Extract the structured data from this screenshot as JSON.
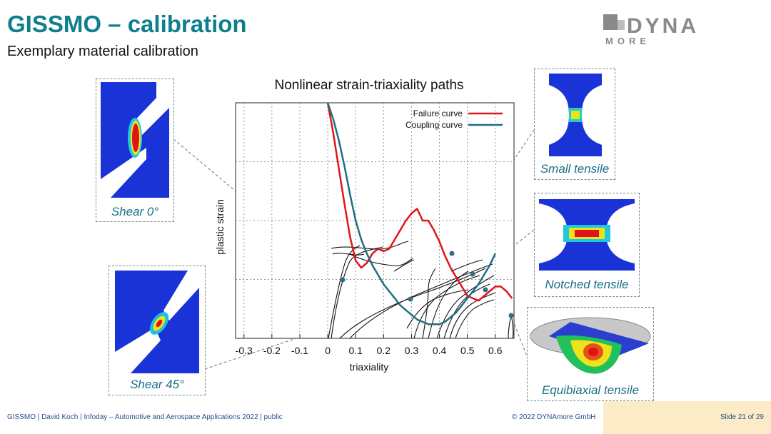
{
  "slide": {
    "title": "GISSMO – calibration",
    "subtitle": "Exemplary material calibration",
    "logo_text_top": "DYNA",
    "logo_text_bottom": "MORE"
  },
  "panels": {
    "shear0": "Shear 0°",
    "shear45": "Shear 45°",
    "small_tensile": "Small tensile",
    "notched_tensile": "Notched tensile",
    "equibiaxial": "Equibiaxial tensile"
  },
  "footer": {
    "left": "GISSMO | David Koch | Infoday – Automotive and Aerospace Applications 2022 | public",
    "copyright": "© 2022 DYNAmore GmbH",
    "slide_number": "Slide 21 of 29"
  },
  "colors": {
    "title": "#0f7f8e",
    "failure_curve": "#e0141b",
    "coupling_curve": "#1f6e86",
    "caption": "#1a6f8a",
    "footer_bg": "#fbecc7"
  },
  "chart_data": {
    "type": "line",
    "title": "Nonlinear strain-triaxiality paths",
    "xlabel": "triaxiality",
    "ylabel": "plastic strain",
    "xlim": [
      -0.33,
      0.667
    ],
    "ylim": [
      0,
      1
    ],
    "x_ticks": [
      -0.3,
      -0.2,
      -0.1,
      0,
      0.1,
      0.2,
      0.3,
      0.4,
      0.5,
      0.6
    ],
    "x_tick_labels": [
      "-0.3",
      "-0.2",
      "-0.1",
      "0",
      "0.1",
      "0.2",
      "0.3",
      "0.4",
      "0.5",
      "0.6"
    ],
    "grid": true,
    "legend": "top-right",
    "series": [
      {
        "name": "Failure curve",
        "color": "#e0141b",
        "x": [
          0.0,
          0.02,
          0.04,
          0.06,
          0.08,
          0.1,
          0.12,
          0.14,
          0.16,
          0.18,
          0.2,
          0.22,
          0.24,
          0.26,
          0.28,
          0.3,
          0.32,
          0.34,
          0.36,
          0.38,
          0.4,
          0.42,
          0.44,
          0.46,
          0.48,
          0.5,
          0.52,
          0.54,
          0.56,
          0.58,
          0.6,
          0.62,
          0.64,
          0.66
        ],
        "y": [
          1.0,
          0.87,
          0.72,
          0.57,
          0.43,
          0.33,
          0.3,
          0.32,
          0.36,
          0.38,
          0.37,
          0.38,
          0.42,
          0.46,
          0.5,
          0.53,
          0.55,
          0.5,
          0.5,
          0.46,
          0.41,
          0.35,
          0.3,
          0.26,
          0.22,
          0.18,
          0.17,
          0.16,
          0.18,
          0.2,
          0.22,
          0.22,
          0.2,
          0.17
        ]
      },
      {
        "name": "Coupling curve",
        "color": "#1f6e86",
        "x": [
          0.0,
          0.02,
          0.04,
          0.06,
          0.08,
          0.1,
          0.12,
          0.14,
          0.16,
          0.18,
          0.2,
          0.22,
          0.24,
          0.26,
          0.28,
          0.3,
          0.32,
          0.34,
          0.36,
          0.38,
          0.4,
          0.42,
          0.44,
          0.46,
          0.48,
          0.5,
          0.52,
          0.54,
          0.56,
          0.58,
          0.6
        ],
        "y": [
          1.0,
          0.93,
          0.84,
          0.73,
          0.61,
          0.5,
          0.42,
          0.36,
          0.31,
          0.27,
          0.23,
          0.2,
          0.17,
          0.14,
          0.12,
          0.1,
          0.08,
          0.07,
          0.06,
          0.06,
          0.06,
          0.07,
          0.09,
          0.11,
          0.14,
          0.17,
          0.2,
          0.23,
          0.27,
          0.31,
          0.36
        ]
      }
    ]
  }
}
